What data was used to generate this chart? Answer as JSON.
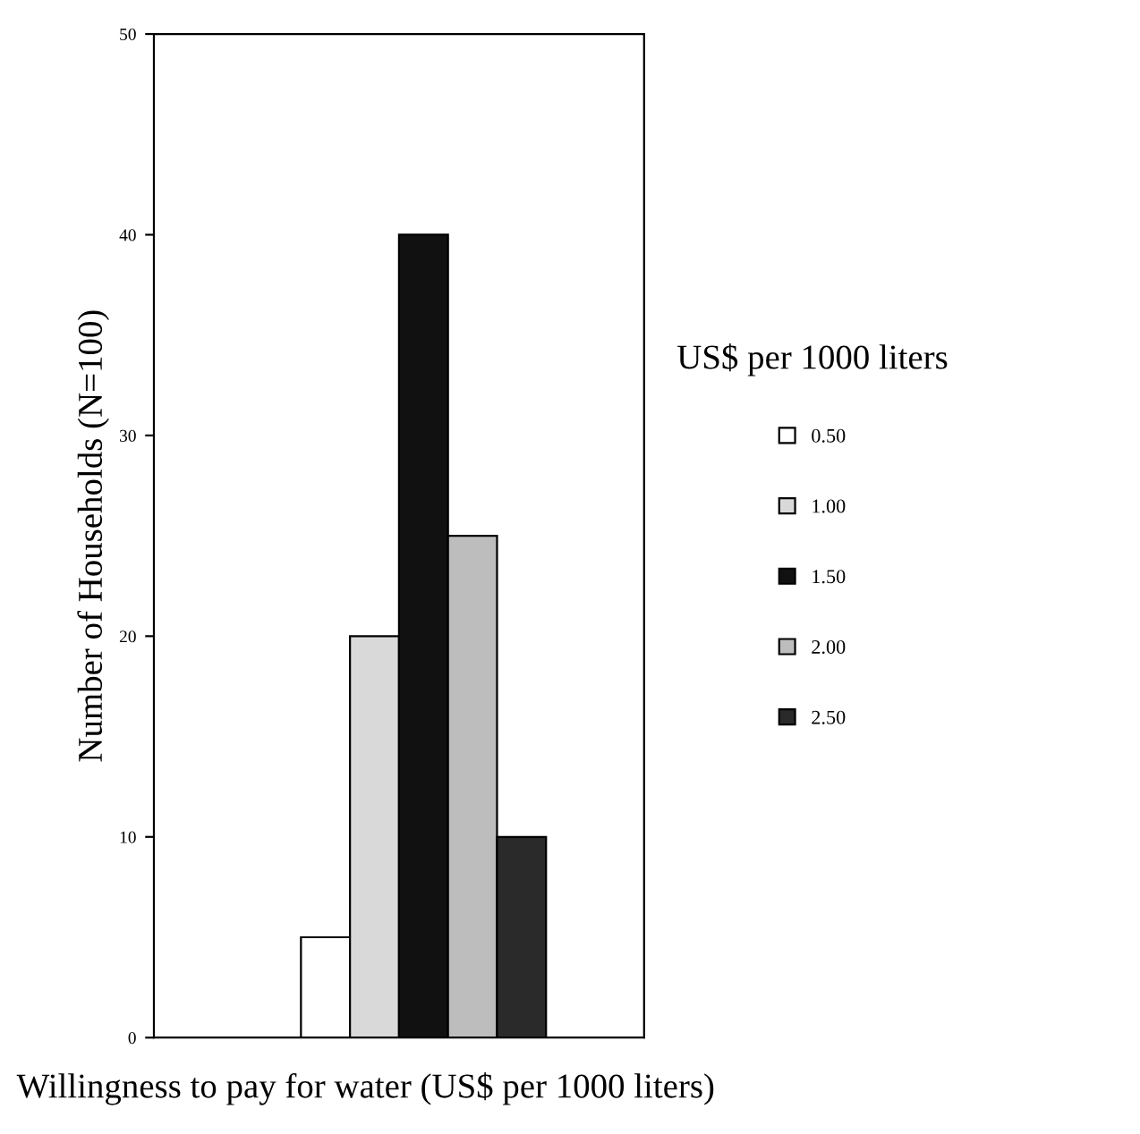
{
  "chart_data": {
    "type": "bar",
    "categories": [
      null,
      null,
      null,
      null,
      null,
      null,
      null,
      null,
      null,
      null
    ],
    "ylabel": "Number of Households (N=100)",
    "xlabel": "Willingness to pay for water (US$ per 1000 liters)",
    "legend_title": "US$ per 1000 liters",
    "legend": "right",
    "grid": false,
    "tick_labels": "y",
    "ylim": [
      0,
      50
    ],
    "yticks": [
      0,
      10,
      20,
      30,
      40,
      50
    ],
    "series": [
      {
        "name": "0.50",
        "color": "#ffffff",
        "values": [
          null,
          null,
          null,
          5,
          null,
          null,
          null,
          null,
          null,
          null
        ]
      },
      {
        "name": "1.00",
        "color": "#d9d9d9",
        "values": [
          null,
          null,
          null,
          null,
          20,
          null,
          null,
          null,
          null,
          null
        ]
      },
      {
        "name": "1.50",
        "color": "#111111",
        "values": [
          null,
          null,
          null,
          null,
          null,
          40,
          null,
          null,
          null,
          null
        ]
      },
      {
        "name": "2.00",
        "color": "#bdbdbd",
        "values": [
          null,
          null,
          null,
          null,
          null,
          null,
          25,
          null,
          null,
          null
        ]
      },
      {
        "name": "2.50",
        "color": "#2a2a2a",
        "values": [
          null,
          null,
          null,
          null,
          null,
          null,
          null,
          10,
          null,
          null
        ]
      }
    ]
  }
}
